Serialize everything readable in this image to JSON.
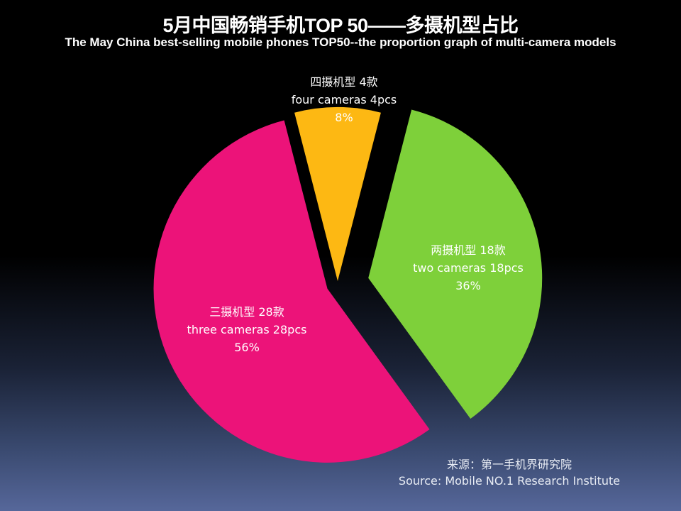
{
  "chart_data": {
    "type": "pie",
    "title": "5月中国畅销手机TOP 50——多摄机型占比",
    "subtitle": "The May China best-selling mobile phones TOP50--the proportion graph of multi-camera models",
    "slices": [
      {
        "label_cn": "四摄机型 4款",
        "label_en": "four cameras 4pcs",
        "value": 4,
        "percent": "8%",
        "color": "#FDB813"
      },
      {
        "label_cn": "两摄机型 18款",
        "label_en": "two cameras 18pcs",
        "value": 18,
        "percent": "36%",
        "color": "#7ED03A"
      },
      {
        "label_cn": "三摄机型 28款",
        "label_en": "three cameras 28pcs",
        "value": 28,
        "percent": "56%",
        "color": "#EC1379"
      }
    ],
    "exploded": true
  },
  "source": {
    "cn": "来源：第一手机界研究院",
    "en": "Source: Mobile NO.1 Research Institute"
  },
  "background": {
    "top": "#000000",
    "bottom": "#56679A"
  }
}
